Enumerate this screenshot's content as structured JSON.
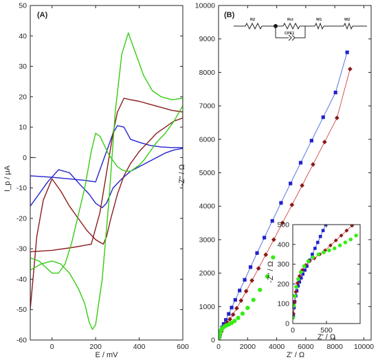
{
  "chart_data": [
    {
      "panel": "(A)",
      "type": "line",
      "xlabel": "E / mV",
      "ylabel": "I_p / μA",
      "xlim": [
        -100,
        600
      ],
      "ylim": [
        -60,
        50
      ],
      "xticks": [
        0,
        200,
        400,
        600
      ],
      "yticks": [
        -60,
        -50,
        -40,
        -30,
        -20,
        -10,
        0,
        10,
        20,
        30,
        40,
        50
      ],
      "grid": false,
      "series": [
        {
          "color": "#2222cc",
          "x": [
            -100,
            0,
            80,
            150,
            200,
            240,
            260,
            280,
            300,
            330,
            360,
            400,
            450,
            500,
            550,
            600,
            600,
            560,
            520,
            480,
            440,
            400,
            360,
            320,
            280,
            250,
            230,
            200,
            170,
            130,
            80,
            30,
            -20,
            -60,
            -100
          ],
          "y": [
            -6,
            -6.5,
            -7,
            -7.5,
            -8,
            0,
            4,
            8,
            10.5,
            10,
            6,
            5,
            4,
            3.5,
            3.3,
            3.3,
            3,
            2.5,
            1.5,
            0,
            -1.5,
            -3,
            -4.5,
            -7,
            -10,
            -15,
            -16.5,
            -15,
            -12,
            -9,
            -5,
            -4,
            -8,
            -12,
            -16
          ]
        },
        {
          "color": "#8b1a1a",
          "x": [
            -100,
            0,
            100,
            180,
            220,
            250,
            280,
            300,
            330,
            360,
            400,
            450,
            500,
            550,
            600,
            600,
            560,
            520,
            480,
            440,
            400,
            360,
            330,
            300,
            270,
            250,
            235,
            200,
            160,
            120,
            80,
            40,
            0,
            -40,
            -70,
            -100
          ],
          "y": [
            -31,
            -30.5,
            -29.5,
            -28.5,
            -18,
            -5,
            8,
            15,
            19.5,
            19,
            18.5,
            17.5,
            16.5,
            15.5,
            15,
            13,
            12,
            10,
            8,
            5,
            2,
            -2,
            -6,
            -12,
            -20,
            -26,
            -28.5,
            -27,
            -24,
            -20,
            -16,
            -11,
            -7,
            -14,
            -26,
            -50
          ]
        },
        {
          "color": "#33cc11",
          "x": [
            -100,
            -50,
            0,
            40,
            80,
            120,
            150,
            170,
            185,
            200,
            230,
            260,
            290,
            320,
            350,
            380,
            420,
            460,
            500,
            550,
            600,
            600,
            560,
            520,
            480,
            450,
            420,
            400,
            380,
            360,
            340,
            320,
            300,
            280,
            260,
            240,
            220,
            200,
            180,
            150,
            120,
            90,
            60,
            30,
            0,
            -30,
            -60,
            -100
          ],
          "y": [
            -37,
            -35,
            -34,
            -35,
            -38,
            -43,
            -48,
            -54,
            -56.5,
            -55,
            -40,
            -15,
            15,
            34,
            41,
            35,
            27,
            22,
            20,
            19,
            19.5,
            17,
            12,
            8,
            5,
            2,
            -1,
            -2.5,
            -3.5,
            -4.5,
            -4.5,
            -4,
            -3,
            -1,
            1,
            4,
            7,
            8,
            2,
            -10,
            -19,
            -28,
            -35,
            -38,
            -38,
            -36,
            -34,
            -33
          ]
        }
      ]
    },
    {
      "panel": "(B)",
      "type": "scatter",
      "xlabel": "Z' / Ω",
      "ylabel": "-Z\" / Ω",
      "xlim": [
        0,
        10500
      ],
      "ylim": [
        0,
        10000
      ],
      "xticks": [
        0,
        2000,
        4000,
        6000,
        8000,
        10000
      ],
      "yticks": [
        0,
        1000,
        2000,
        3000,
        4000,
        5000,
        6000,
        7000,
        8000,
        9000,
        10000
      ],
      "grid": false,
      "circuit_labels": [
        "R2",
        "Rct",
        "W1",
        "W2",
        "CPE1"
      ],
      "series": [
        {
          "marker": "square",
          "color": "#2222cc",
          "fit_color": "#4466dd",
          "x": [
            20,
            80,
            150,
            250,
            350,
            500,
            700,
            900,
            1150,
            1450,
            1800,
            2200,
            2650,
            3150,
            3700,
            4300,
            4950,
            5650,
            6400,
            7200,
            8050,
            8850
          ],
          "y": [
            20,
            120,
            250,
            380,
            480,
            600,
            780,
            970,
            1200,
            1480,
            1800,
            2180,
            2600,
            3060,
            3560,
            4100,
            4680,
            5300,
            5960,
            6660,
            7400,
            8600
          ]
        },
        {
          "marker": "diamond",
          "color": "#8b1a1a",
          "fit_color": "#cc4444",
          "x": [
            20,
            100,
            200,
            320,
            450,
            600,
            780,
            1000,
            1250,
            1550,
            1900,
            2300,
            2750,
            3250,
            3800,
            4400,
            5050,
            5750,
            6500,
            7300,
            8150,
            9050
          ],
          "y": [
            20,
            150,
            260,
            360,
            440,
            520,
            620,
            760,
            950,
            1180,
            1460,
            1780,
            2140,
            2550,
            3000,
            3500,
            4040,
            4620,
            5250,
            5920,
            6640,
            8100
          ]
        },
        {
          "marker": "circle",
          "color": "#33ee11",
          "x": [
            20,
            60,
            120,
            200,
            300,
            420,
            560,
            720,
            900,
            1100,
            1350,
            1650,
            2000,
            2400,
            2850,
            3350,
            3750
          ],
          "y": [
            30,
            130,
            230,
            310,
            370,
            410,
            440,
            470,
            510,
            570,
            660,
            790,
            960,
            1200,
            1500,
            1900,
            2470
          ]
        }
      ],
      "inset": {
        "xlim": [
          0,
          1000
        ],
        "ylim": [
          0,
          500
        ],
        "xticks": [
          0,
          500
        ],
        "yticks": [
          0,
          100,
          200,
          300,
          400,
          500
        ],
        "xlabel": "Z' / Ω",
        "ylabel": "-Z\" / Ω",
        "series": [
          {
            "marker": "square",
            "color": "#2222cc",
            "fit_color": "#4466dd",
            "x": [
              10,
              20,
              30,
              45,
              60,
              80,
              100,
              125,
              150,
              180,
              210,
              250,
              290,
              330,
              370,
              410,
              450,
              490
            ],
            "y": [
              40,
              80,
              110,
              140,
              165,
              190,
              210,
              230,
              250,
              270,
              290,
              320,
              350,
              380,
              410,
              440,
              470,
              500
            ]
          },
          {
            "marker": "diamond",
            "color": "#8b1a1a",
            "fit_color": "#cc4444",
            "x": [
              10,
              25,
              45,
              70,
              100,
              140,
              190,
              250,
              320,
              400,
              480,
              560,
              640,
              720,
              800,
              880
            ],
            "y": [
              50,
              110,
              160,
              205,
              240,
              270,
              295,
              315,
              330,
              350,
              370,
              395,
              420,
              445,
              470,
              495
            ]
          },
          {
            "marker": "circle",
            "color": "#33ee11",
            "x": [
              5,
              15,
              30,
              50,
              80,
              120,
              170,
              230,
              300,
              380,
              460,
              540,
              620,
              700,
              780,
              860,
              940
            ],
            "y": [
              30,
              90,
              140,
              185,
              225,
              260,
              290,
              315,
              335,
              350,
              360,
              370,
              380,
              395,
              410,
              425,
              445
            ]
          }
        ]
      }
    }
  ]
}
